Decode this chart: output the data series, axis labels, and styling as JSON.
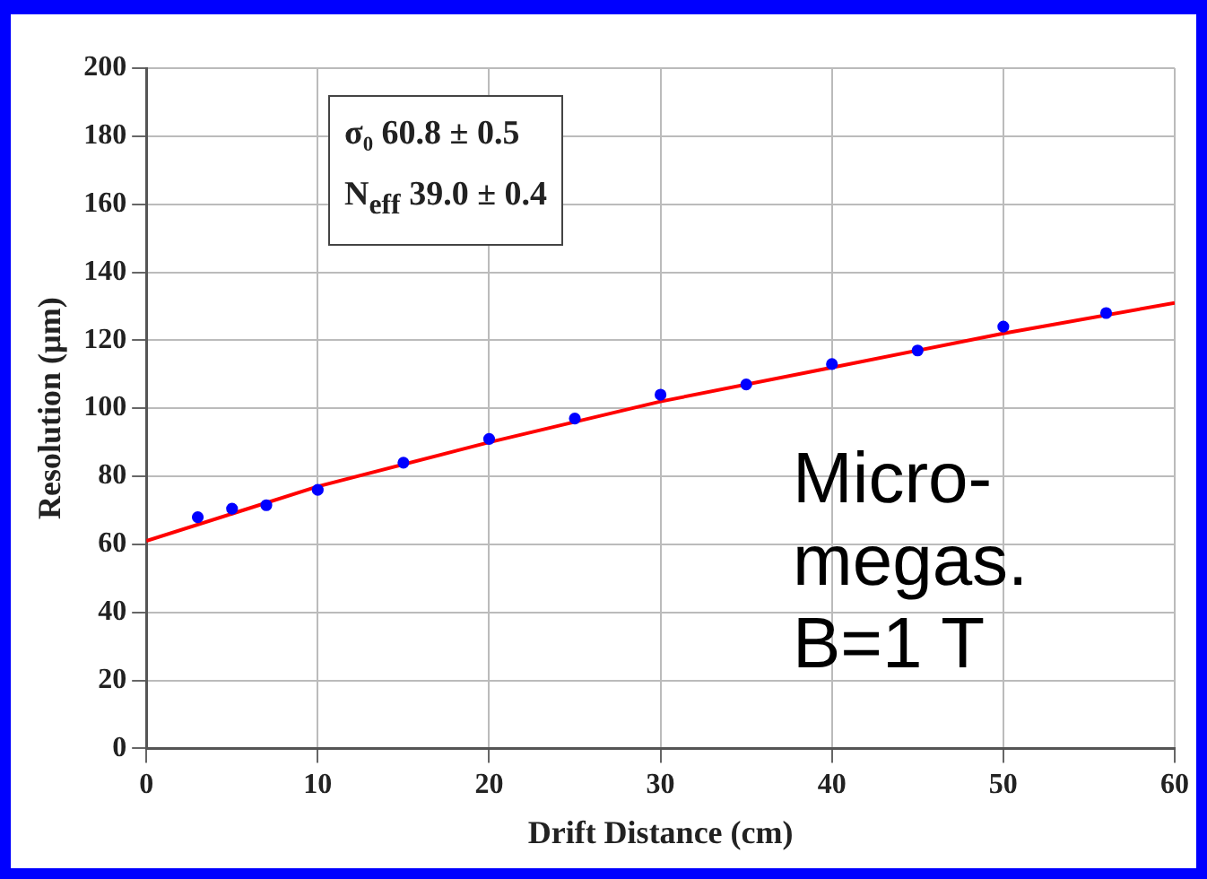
{
  "chart_data": {
    "type": "scatter",
    "xlabel": "Drift Distance (cm)",
    "ylabel": "Resolution (µm)",
    "xlim": [
      0,
      60
    ],
    "xticks": [
      0,
      10,
      20,
      30,
      40,
      50,
      60
    ],
    "ylim": [
      0,
      200
    ],
    "yticks": [
      0,
      20,
      40,
      60,
      80,
      100,
      120,
      140,
      160,
      180,
      200
    ],
    "grid": true,
    "legend": false,
    "series": [
      {
        "type": "scatter",
        "marker": "circle",
        "color": "#0000ff",
        "x": [
          3,
          5,
          7,
          10,
          15,
          20,
          25,
          30,
          35,
          40,
          45,
          50,
          56
        ],
        "values": [
          68,
          70.5,
          71.5,
          76,
          84,
          91,
          97,
          104,
          107,
          113,
          117,
          124,
          128
        ]
      },
      {
        "type": "line",
        "marker": "none",
        "color": "#ff0000",
        "x": [
          0,
          5,
          10,
          20,
          30,
          40,
          50,
          60
        ],
        "values": [
          61,
          69,
          77,
          90,
          102,
          112,
          122,
          131
        ]
      }
    ],
    "annotations": [
      "σ₀ 60.8 ± 0.5",
      "N$_{eff}$ 39.0 ± 0.4",
      "Micro-\nmegas.\nB=1 T"
    ]
  }
}
